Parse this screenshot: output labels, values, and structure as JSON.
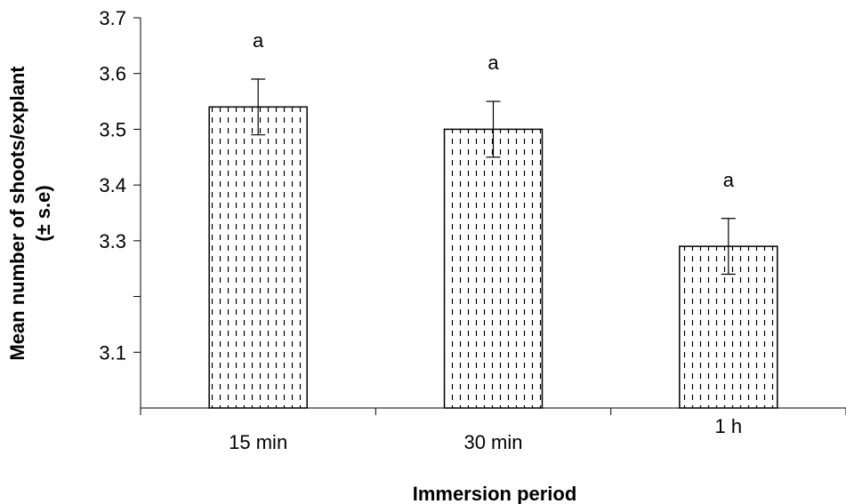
{
  "chart_data": {
    "type": "bar",
    "title": "",
    "xlabel": "Immersion period",
    "ylabel_lines": [
      "Mean number of shoots/explant",
      "(± s.e)"
    ],
    "categories": [
      "15 min",
      "30 min",
      "1 h"
    ],
    "values": [
      3.54,
      3.5,
      3.29
    ],
    "errors": [
      0.05,
      0.05,
      0.05
    ],
    "significance_labels": [
      "a",
      "a",
      "a"
    ],
    "ylim": [
      3.0,
      3.7
    ],
    "y_ticks": [
      3.1,
      3.2,
      3.3,
      3.4,
      3.5,
      3.6,
      3.7
    ],
    "y_tick_labels": [
      "3.1",
      "",
      "3.3",
      "3.4",
      "3.5",
      "3.6",
      "3.7"
    ],
    "grid": false,
    "legend": "none",
    "bar_fill": "#ffffff",
    "bar_pattern": "vertical-dashes",
    "bar_edge": "#000000"
  }
}
